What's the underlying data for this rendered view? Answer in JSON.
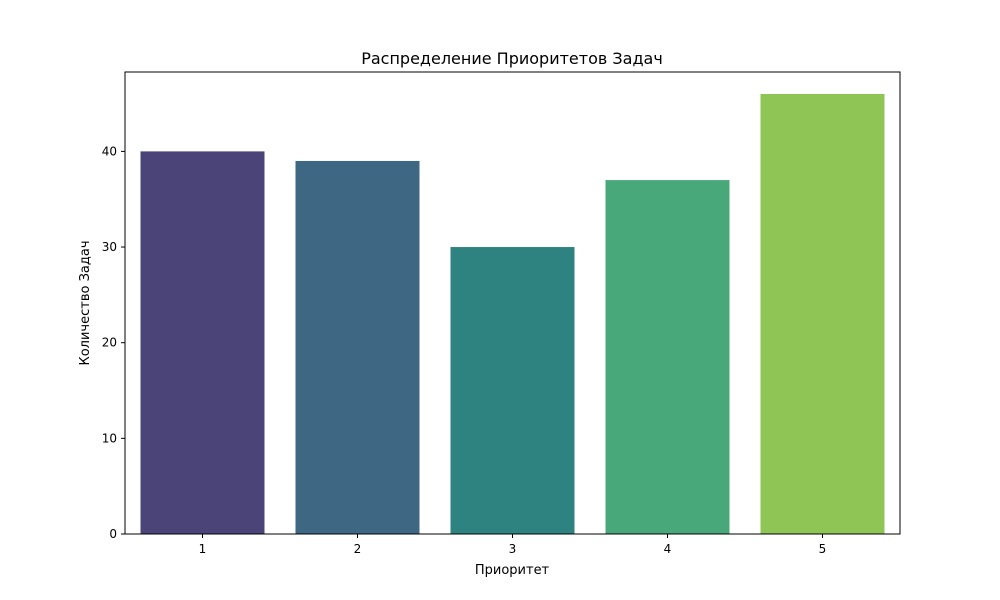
{
  "chart_data": {
    "type": "bar",
    "title": "Распределение Приоритетов Задач",
    "xlabel": "Приоритет",
    "ylabel": "Количество Задач",
    "categories": [
      "1",
      "2",
      "3",
      "4",
      "5"
    ],
    "values": [
      40,
      39,
      30,
      37,
      46
    ],
    "colors": [
      "#4a4479",
      "#3e6784",
      "#2e8380",
      "#48a87a",
      "#8fc555"
    ],
    "ylim": [
      0,
      48.3
    ],
    "yticks": [
      0,
      10,
      20,
      30,
      40
    ],
    "grid": false,
    "legend": "none"
  }
}
